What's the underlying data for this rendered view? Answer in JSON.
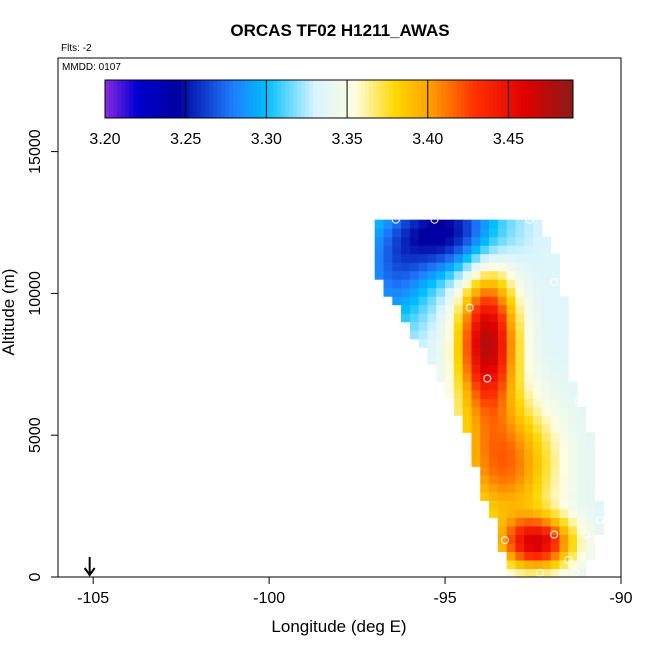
{
  "chart_data": {
    "type": "heatmap",
    "title": "ORCAS TF02 H1211_AWAS",
    "annotations": [
      "Flts: -2",
      "MMDD: 0107"
    ],
    "xlabel": "Longitude (deg E)",
    "ylabel": "Altitude (m)",
    "xlim": [
      -106,
      -90
    ],
    "ylim": [
      0,
      18300
    ],
    "xticks": [
      -105,
      -100,
      -95,
      -90
    ],
    "yticks": [
      0,
      5000,
      10000,
      15000
    ],
    "colorbar": {
      "min": 3.2,
      "max": 3.49,
      "ticks": [
        "3.20",
        "3.25",
        "3.30",
        "3.35",
        "3.40",
        "3.45"
      ],
      "stops": [
        {
          "v": 3.2,
          "color": "#8a2be2"
        },
        {
          "v": 3.22,
          "color": "#0000d0"
        },
        {
          "v": 3.245,
          "color": "#0000a0"
        },
        {
          "v": 3.28,
          "color": "#1f7fff"
        },
        {
          "v": 3.3,
          "color": "#00bfff"
        },
        {
          "v": 3.33,
          "color": "#d8f4ff"
        },
        {
          "v": 3.355,
          "color": "#fffde0"
        },
        {
          "v": 3.38,
          "color": "#ffd700"
        },
        {
          "v": 3.4,
          "color": "#ffa500"
        },
        {
          "v": 3.43,
          "color": "#ff3000"
        },
        {
          "v": 3.46,
          "color": "#e00000"
        },
        {
          "v": 3.49,
          "color": "#8b1a1a"
        }
      ]
    },
    "field": {
      "lon_step": 0.25,
      "alt_step": 300,
      "envelope": [
        {
          "alt": 12600,
          "lon": [
            -97.0,
            -92.5
          ]
        },
        {
          "alt": 11000,
          "lon": [
            -97.0,
            -91.8
          ]
        },
        {
          "alt": 9000,
          "lon": [
            -96.0,
            -91.7
          ]
        },
        {
          "alt": 7000,
          "lon": [
            -95.0,
            -91.5
          ]
        },
        {
          "alt": 5000,
          "lon": [
            -94.2,
            -91.0
          ]
        },
        {
          "alt": 3000,
          "lon": [
            -93.8,
            -90.8
          ]
        },
        {
          "alt": 2000,
          "lon": [
            -93.5,
            -90.6
          ]
        },
        {
          "alt": 0,
          "lon": [
            -93.1,
            -91.2
          ]
        }
      ],
      "features": [
        {
          "lon": -95.0,
          "alt": 12200,
          "sx": 1.6,
          "sy": 1500,
          "v": -0.09
        },
        {
          "lon": -96.5,
          "alt": 10500,
          "sx": 1.1,
          "sy": 2000,
          "v": -0.05
        },
        {
          "lon": -93.8,
          "alt": 8300,
          "sx": 0.8,
          "sy": 2400,
          "v": 0.14
        },
        {
          "lon": -93.3,
          "alt": 4000,
          "sx": 1.4,
          "sy": 2200,
          "v": 0.08
        },
        {
          "lon": -92.4,
          "alt": 1200,
          "sx": 1.0,
          "sy": 900,
          "v": 0.12
        }
      ],
      "base": 3.335,
      "shift_per_lon": 0.0
    },
    "samples": [
      {
        "lon": -93.2,
        "alt": 13000
      },
      {
        "lon": -92.6,
        "alt": 12600
      },
      {
        "lon": -96.4,
        "alt": 12600
      },
      {
        "lon": -95.3,
        "alt": 12600
      },
      {
        "lon": -91.9,
        "alt": 10400
      },
      {
        "lon": -94.3,
        "alt": 9500
      },
      {
        "lon": -93.8,
        "alt": 7000
      },
      {
        "lon": -91.2,
        "alt": 6200
      },
      {
        "lon": -94.2,
        "alt": 2500
      },
      {
        "lon": -93.3,
        "alt": 1300
      },
      {
        "lon": -93.7,
        "alt": 1050
      },
      {
        "lon": -94.1,
        "alt": 1100
      },
      {
        "lon": -91.9,
        "alt": 1500
      },
      {
        "lon": -91.0,
        "alt": 1500
      },
      {
        "lon": -91.5,
        "alt": 600
      },
      {
        "lon": -94.0,
        "alt": 150
      },
      {
        "lon": -92.3,
        "alt": 150
      },
      {
        "lon": -91.3,
        "alt": 150
      },
      {
        "lon": -90.6,
        "alt": 2000
      }
    ],
    "arrow": {
      "lon": -105.1
    }
  }
}
